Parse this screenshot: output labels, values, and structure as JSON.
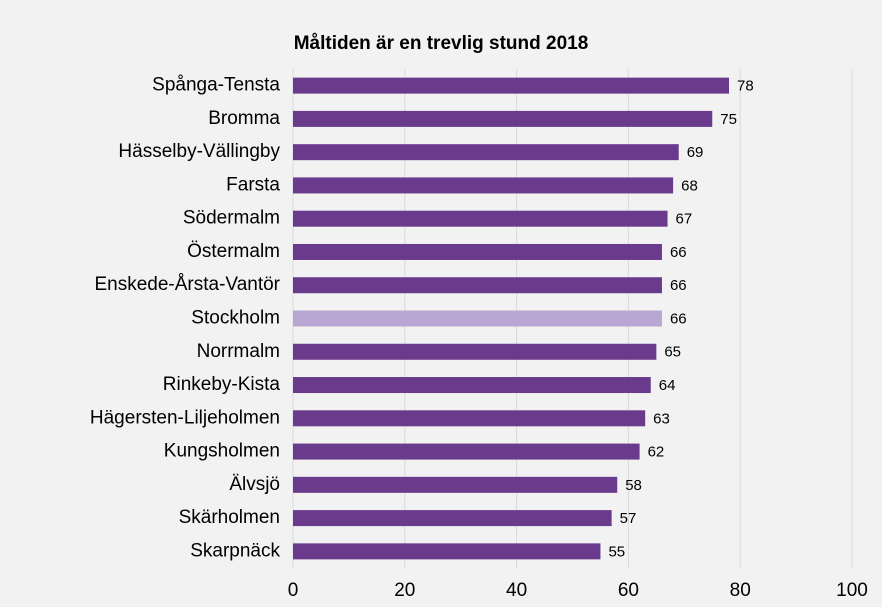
{
  "chart_data": {
    "type": "bar",
    "orientation": "horizontal",
    "title": "Måltiden är en trevlig stund 2018",
    "categories": [
      "Spånga-Tensta",
      "Bromma",
      "Hässelby-Vällingby",
      "Farsta",
      "Södermalm",
      "Östermalm",
      "Enskede-Årsta-Vantör",
      "Stockholm",
      "Norrmalm",
      "Rinkeby-Kista",
      "Hägersten-Liljeholmen",
      "Kungsholmen",
      "Älvsjö",
      "Skärholmen",
      "Skarpnäck"
    ],
    "values": [
      78,
      75,
      69,
      68,
      67,
      66,
      66,
      66,
      65,
      64,
      63,
      62,
      58,
      57,
      55
    ],
    "colors": [
      "#6a3a8c",
      "#6a3a8c",
      "#6a3a8c",
      "#6a3a8c",
      "#6a3a8c",
      "#6a3a8c",
      "#6a3a8c",
      "#baa6d3",
      "#6a3a8c",
      "#6a3a8c",
      "#6a3a8c",
      "#6a3a8c",
      "#6a3a8c",
      "#6a3a8c",
      "#6a3a8c"
    ],
    "xlim": [
      0,
      100
    ],
    "xticks": [
      0,
      20,
      40,
      60,
      80,
      100
    ],
    "grid": true
  }
}
